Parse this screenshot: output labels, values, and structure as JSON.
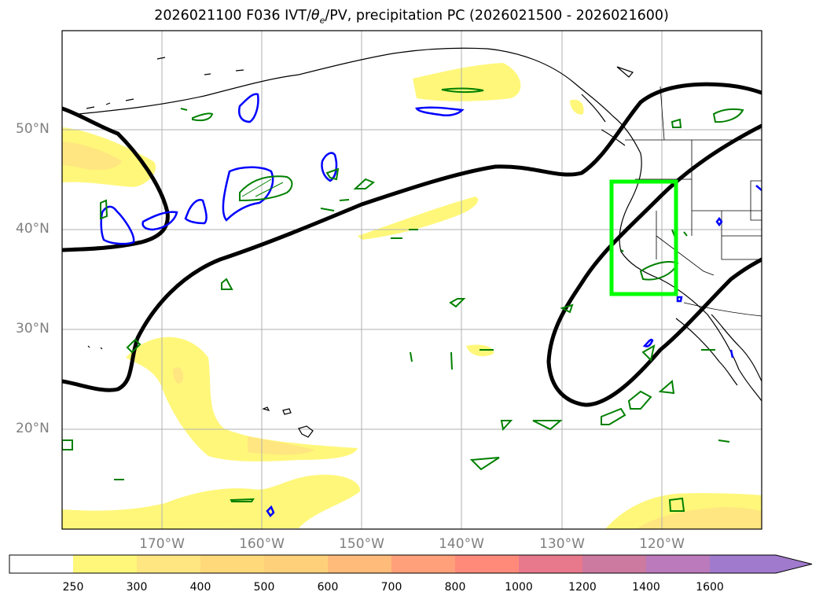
{
  "title": "2026021100 F036 IVT/θe/PV, precipitation PC (2026021500 - 2026021600)",
  "title_parts": {
    "prefix": "2026021100 F036 IVT/",
    "theta": "θ",
    "theta_sub": "e",
    "suffix": "/PV, precipitation PC (2026021500 - 2026021600)"
  },
  "map": {
    "lat_labels": [
      "50°N",
      "40°N",
      "30°N",
      "20°N"
    ],
    "lon_labels": [
      "170°W",
      "160°W",
      "150°W",
      "140°W",
      "130°W",
      "120°W"
    ],
    "lat_range": [
      10,
      60
    ],
    "lon_range": [
      -180,
      -110
    ],
    "highlight_box": {
      "lon": [
        -125,
        -118.5
      ],
      "lat": [
        33.5,
        45
      ],
      "color": "#00ff00"
    },
    "colors": {
      "ivt_fill": "#fff77a",
      "ivt_fill_2": "#ffe680",
      "theta_contour": "#000000",
      "pv_positive": "#0000ff",
      "pv_green": "#008000"
    }
  },
  "colorbar": {
    "ticks": [
      "250",
      "300",
      "400",
      "500",
      "600",
      "700",
      "800",
      "1000",
      "1200",
      "1400",
      "1600"
    ],
    "colors": [
      "#ffffff",
      "#fff77a",
      "#ffe680",
      "#ffd97a",
      "#ffd07a",
      "#ffbb7a",
      "#ffa07a",
      "#ff8a7a",
      "#e8788c",
      "#cc7aa0",
      "#bb7abb",
      "#a07acc"
    ]
  }
}
